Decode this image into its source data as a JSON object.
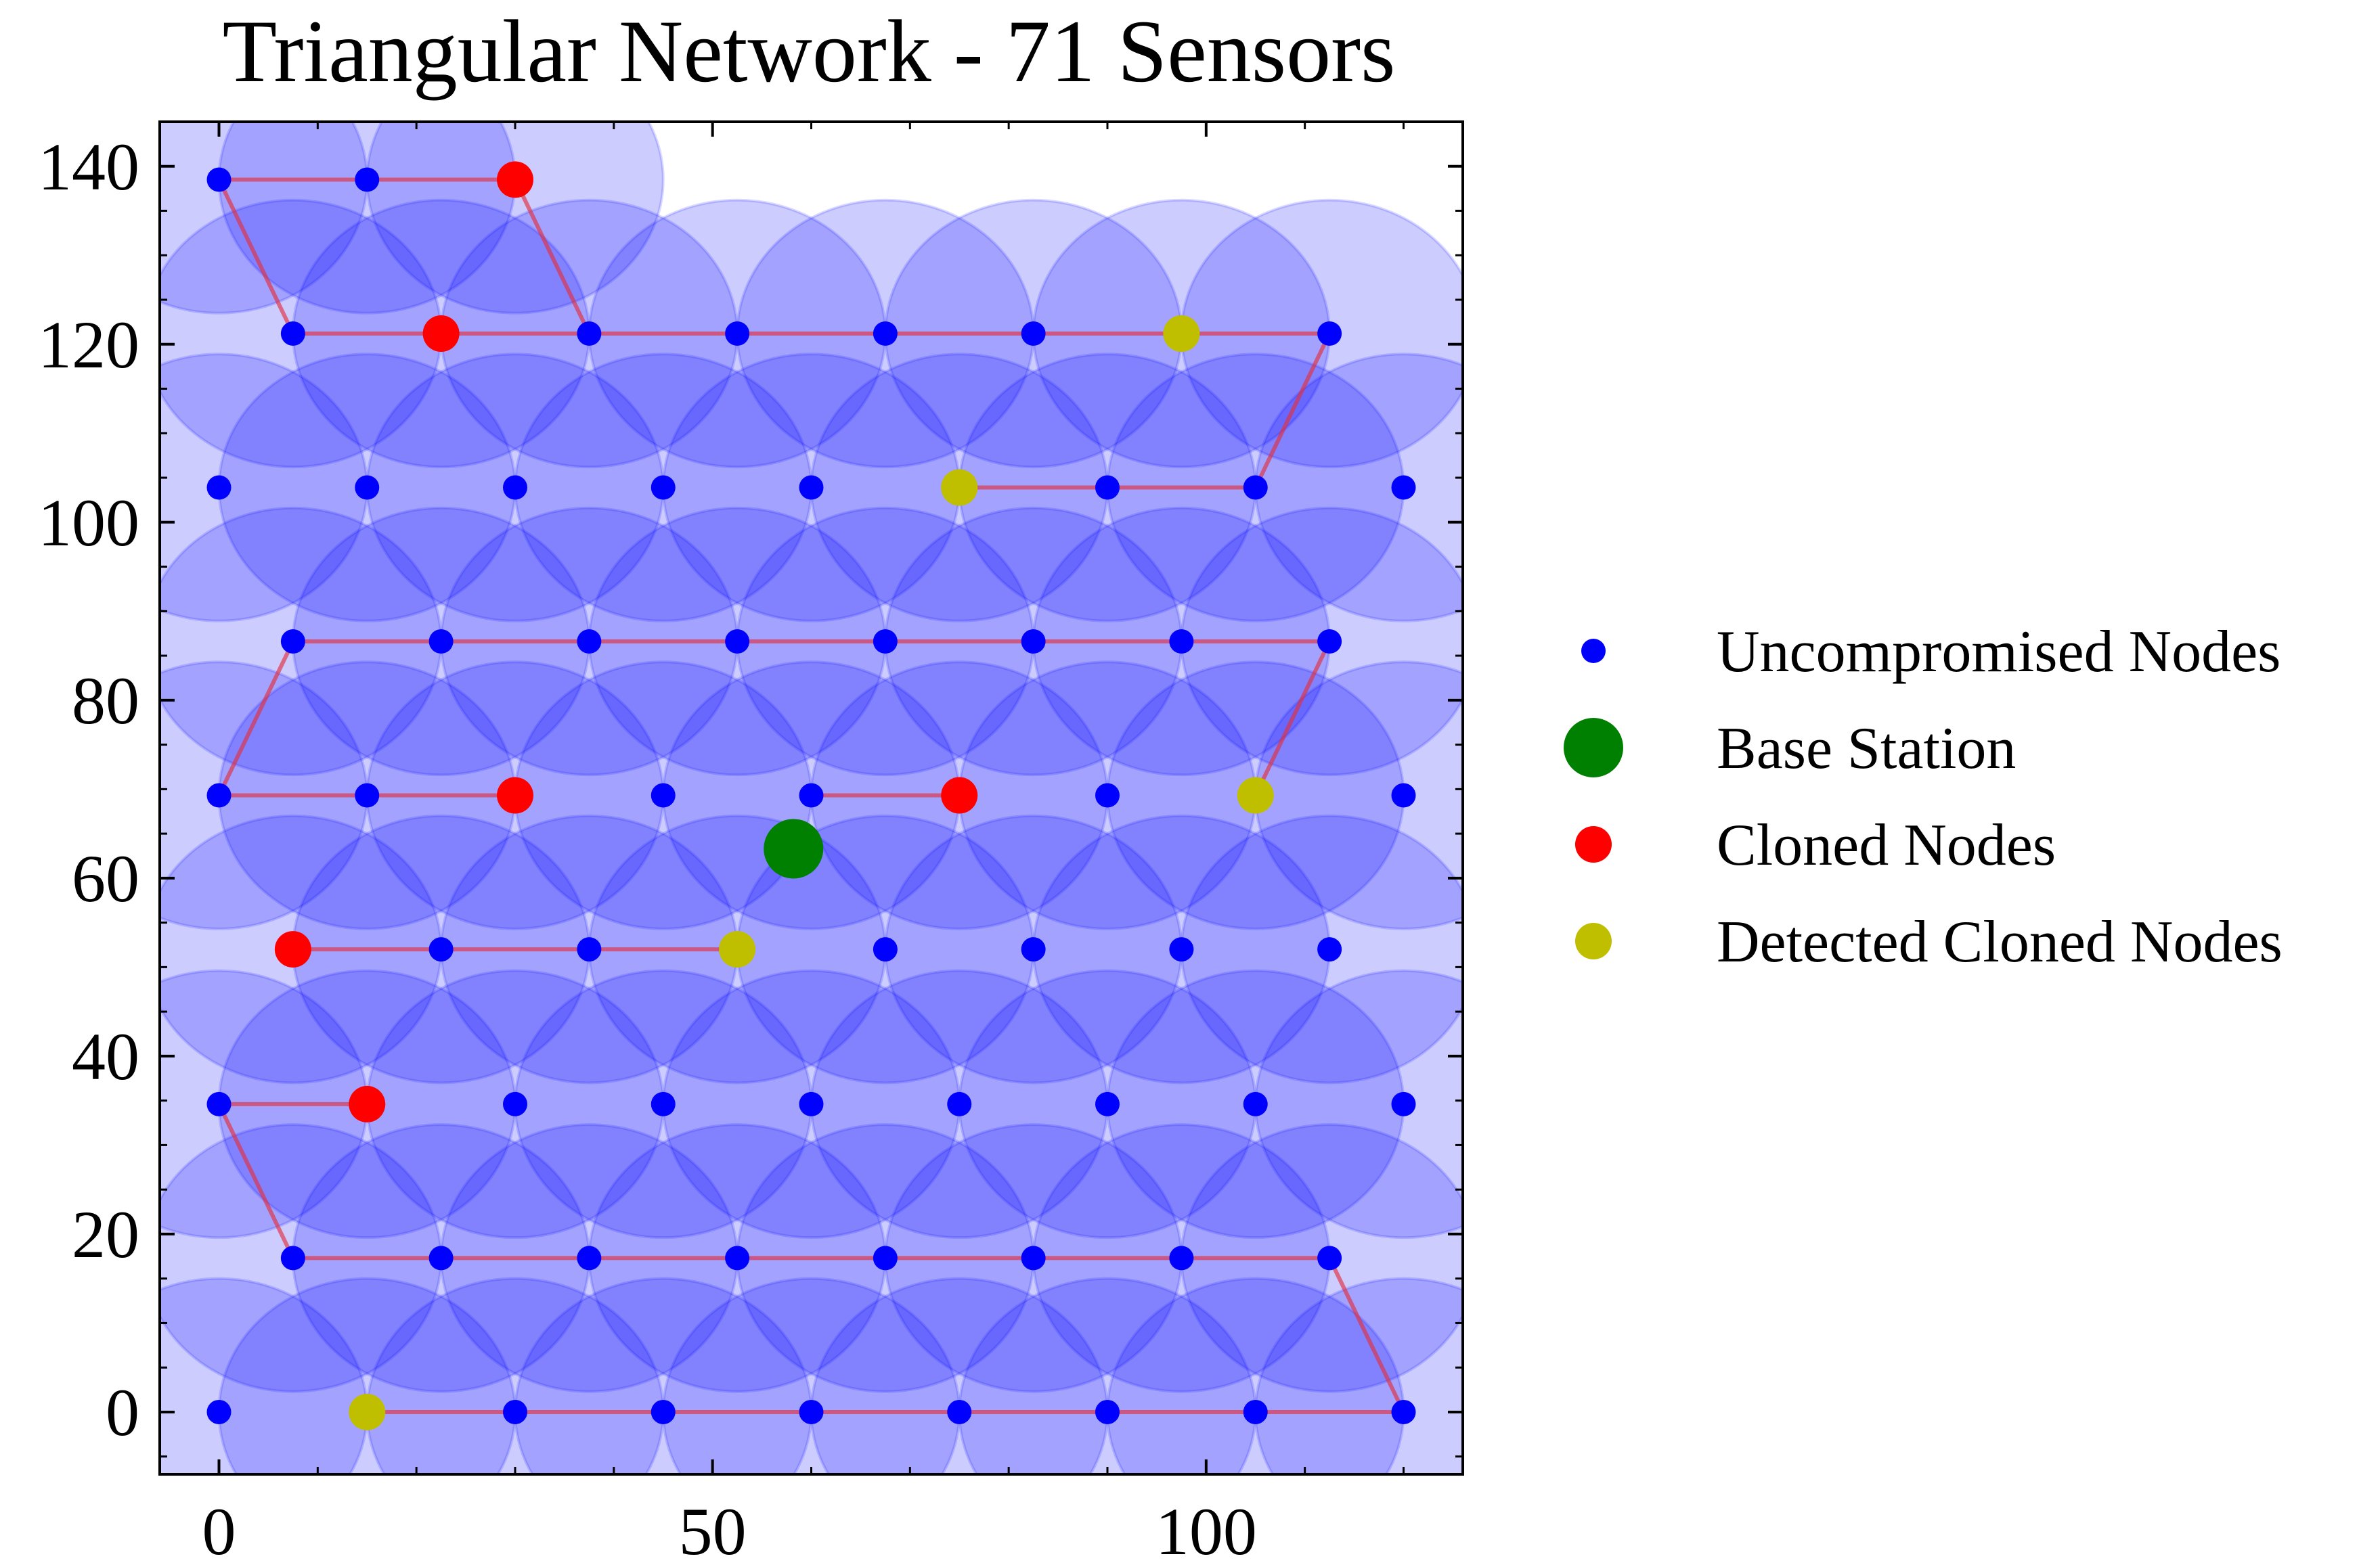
{
  "chart_data": {
    "type": "scatter",
    "title": "Triangular Network - 71 Sensors",
    "xlabel": "",
    "ylabel": "",
    "xlim": [
      -6,
      126
    ],
    "ylim": [
      -7,
      145
    ],
    "x_ticks": [
      0,
      50,
      100
    ],
    "y_ticks": [
      0,
      20,
      40,
      60,
      80,
      100,
      120,
      140
    ],
    "grid": false,
    "legend_position": "outside-right",
    "sensor_range": 15,
    "colors": {
      "uncompromised": "#0000ff",
      "base_station": "#008000",
      "cloned": "#ff0000",
      "detected": "#bfbf00",
      "coverage": "#0000ff",
      "path": "#e0303f"
    },
    "legend": [
      {
        "key": "uncompromised",
        "label": "Uncompromised Nodes"
      },
      {
        "key": "base_station",
        "label": "Base Station"
      },
      {
        "key": "cloned",
        "label": "Cloned Nodes"
      },
      {
        "key": "detected",
        "label": "Detected Cloned Nodes"
      }
    ],
    "base_station": [
      58.2,
      63.3
    ],
    "nodes": [
      {
        "x": 0,
        "y": 138.5,
        "type": "uncompromised"
      },
      {
        "x": 15,
        "y": 138.5,
        "type": "uncompromised"
      },
      {
        "x": 30,
        "y": 138.5,
        "type": "cloned"
      },
      {
        "x": 7.5,
        "y": 121.2,
        "type": "uncompromised"
      },
      {
        "x": 22.5,
        "y": 121.2,
        "type": "cloned"
      },
      {
        "x": 37.5,
        "y": 121.2,
        "type": "uncompromised"
      },
      {
        "x": 52.5,
        "y": 121.2,
        "type": "uncompromised"
      },
      {
        "x": 67.5,
        "y": 121.2,
        "type": "uncompromised"
      },
      {
        "x": 82.5,
        "y": 121.2,
        "type": "uncompromised"
      },
      {
        "x": 97.5,
        "y": 121.2,
        "type": "detected"
      },
      {
        "x": 112.5,
        "y": 121.2,
        "type": "uncompromised"
      },
      {
        "x": 0,
        "y": 103.9,
        "type": "uncompromised"
      },
      {
        "x": 15,
        "y": 103.9,
        "type": "uncompromised"
      },
      {
        "x": 30,
        "y": 103.9,
        "type": "uncompromised"
      },
      {
        "x": 45,
        "y": 103.9,
        "type": "uncompromised"
      },
      {
        "x": 60,
        "y": 103.9,
        "type": "uncompromised"
      },
      {
        "x": 75,
        "y": 103.9,
        "type": "detected"
      },
      {
        "x": 90,
        "y": 103.9,
        "type": "uncompromised"
      },
      {
        "x": 105,
        "y": 103.9,
        "type": "uncompromised"
      },
      {
        "x": 120,
        "y": 103.9,
        "type": "uncompromised"
      },
      {
        "x": 7.5,
        "y": 86.6,
        "type": "uncompromised"
      },
      {
        "x": 22.5,
        "y": 86.6,
        "type": "uncompromised"
      },
      {
        "x": 37.5,
        "y": 86.6,
        "type": "uncompromised"
      },
      {
        "x": 52.5,
        "y": 86.6,
        "type": "uncompromised"
      },
      {
        "x": 67.5,
        "y": 86.6,
        "type": "uncompromised"
      },
      {
        "x": 82.5,
        "y": 86.6,
        "type": "uncompromised"
      },
      {
        "x": 97.5,
        "y": 86.6,
        "type": "uncompromised"
      },
      {
        "x": 112.5,
        "y": 86.6,
        "type": "uncompromised"
      },
      {
        "x": 0,
        "y": 69.3,
        "type": "uncompromised"
      },
      {
        "x": 15,
        "y": 69.3,
        "type": "uncompromised"
      },
      {
        "x": 30,
        "y": 69.3,
        "type": "cloned"
      },
      {
        "x": 45,
        "y": 69.3,
        "type": "uncompromised"
      },
      {
        "x": 60,
        "y": 69.3,
        "type": "uncompromised"
      },
      {
        "x": 75,
        "y": 69.3,
        "type": "cloned"
      },
      {
        "x": 90,
        "y": 69.3,
        "type": "uncompromised"
      },
      {
        "x": 105,
        "y": 69.3,
        "type": "detected"
      },
      {
        "x": 120,
        "y": 69.3,
        "type": "uncompromised"
      },
      {
        "x": 7.5,
        "y": 52.0,
        "type": "cloned"
      },
      {
        "x": 22.5,
        "y": 52.0,
        "type": "uncompromised"
      },
      {
        "x": 37.5,
        "y": 52.0,
        "type": "uncompromised"
      },
      {
        "x": 52.5,
        "y": 52.0,
        "type": "detected"
      },
      {
        "x": 67.5,
        "y": 52.0,
        "type": "uncompromised"
      },
      {
        "x": 82.5,
        "y": 52.0,
        "type": "uncompromised"
      },
      {
        "x": 97.5,
        "y": 52.0,
        "type": "uncompromised"
      },
      {
        "x": 112.5,
        "y": 52.0,
        "type": "uncompromised"
      },
      {
        "x": 0,
        "y": 34.6,
        "type": "uncompromised"
      },
      {
        "x": 15,
        "y": 34.6,
        "type": "cloned"
      },
      {
        "x": 30,
        "y": 34.6,
        "type": "uncompromised"
      },
      {
        "x": 45,
        "y": 34.6,
        "type": "uncompromised"
      },
      {
        "x": 60,
        "y": 34.6,
        "type": "uncompromised"
      },
      {
        "x": 75,
        "y": 34.6,
        "type": "uncompromised"
      },
      {
        "x": 90,
        "y": 34.6,
        "type": "uncompromised"
      },
      {
        "x": 105,
        "y": 34.6,
        "type": "uncompromised"
      },
      {
        "x": 120,
        "y": 34.6,
        "type": "uncompromised"
      },
      {
        "x": 7.5,
        "y": 17.3,
        "type": "uncompromised"
      },
      {
        "x": 22.5,
        "y": 17.3,
        "type": "uncompromised"
      },
      {
        "x": 37.5,
        "y": 17.3,
        "type": "uncompromised"
      },
      {
        "x": 52.5,
        "y": 17.3,
        "type": "uncompromised"
      },
      {
        "x": 67.5,
        "y": 17.3,
        "type": "uncompromised"
      },
      {
        "x": 82.5,
        "y": 17.3,
        "type": "uncompromised"
      },
      {
        "x": 97.5,
        "y": 17.3,
        "type": "uncompromised"
      },
      {
        "x": 112.5,
        "y": 17.3,
        "type": "uncompromised"
      },
      {
        "x": 0,
        "y": 0,
        "type": "uncompromised"
      },
      {
        "x": 15,
        "y": 0,
        "type": "detected"
      },
      {
        "x": 30,
        "y": 0,
        "type": "uncompromised"
      },
      {
        "x": 45,
        "y": 0,
        "type": "uncompromised"
      },
      {
        "x": 60,
        "y": 0,
        "type": "uncompromised"
      },
      {
        "x": 75,
        "y": 0,
        "type": "uncompromised"
      },
      {
        "x": 90,
        "y": 0,
        "type": "uncompromised"
      },
      {
        "x": 105,
        "y": 0,
        "type": "uncompromised"
      },
      {
        "x": 120,
        "y": 0,
        "type": "uncompromised"
      }
    ],
    "paths": [
      [
        [
          30,
          138.5
        ],
        [
          0,
          138.5
        ],
        [
          7.5,
          121.2
        ],
        [
          112.5,
          121.2
        ],
        [
          105,
          103.9
        ],
        [
          75,
          103.9
        ]
      ],
      [
        [
          30,
          138.5
        ],
        [
          37.5,
          121.2
        ]
      ],
      [
        [
          105,
          69.3
        ],
        [
          112.5,
          86.6
        ],
        [
          7.5,
          86.6
        ],
        [
          0,
          69.3
        ],
        [
          30,
          69.3
        ]
      ],
      [
        [
          60,
          69.3
        ],
        [
          75,
          69.3
        ]
      ],
      [
        [
          7.5,
          52.0
        ],
        [
          52.5,
          52.0
        ]
      ],
      [
        [
          15,
          34.6
        ],
        [
          0,
          34.6
        ],
        [
          7.5,
          17.3
        ],
        [
          112.5,
          17.3
        ],
        [
          120,
          0
        ],
        [
          15,
          0
        ]
      ]
    ]
  }
}
